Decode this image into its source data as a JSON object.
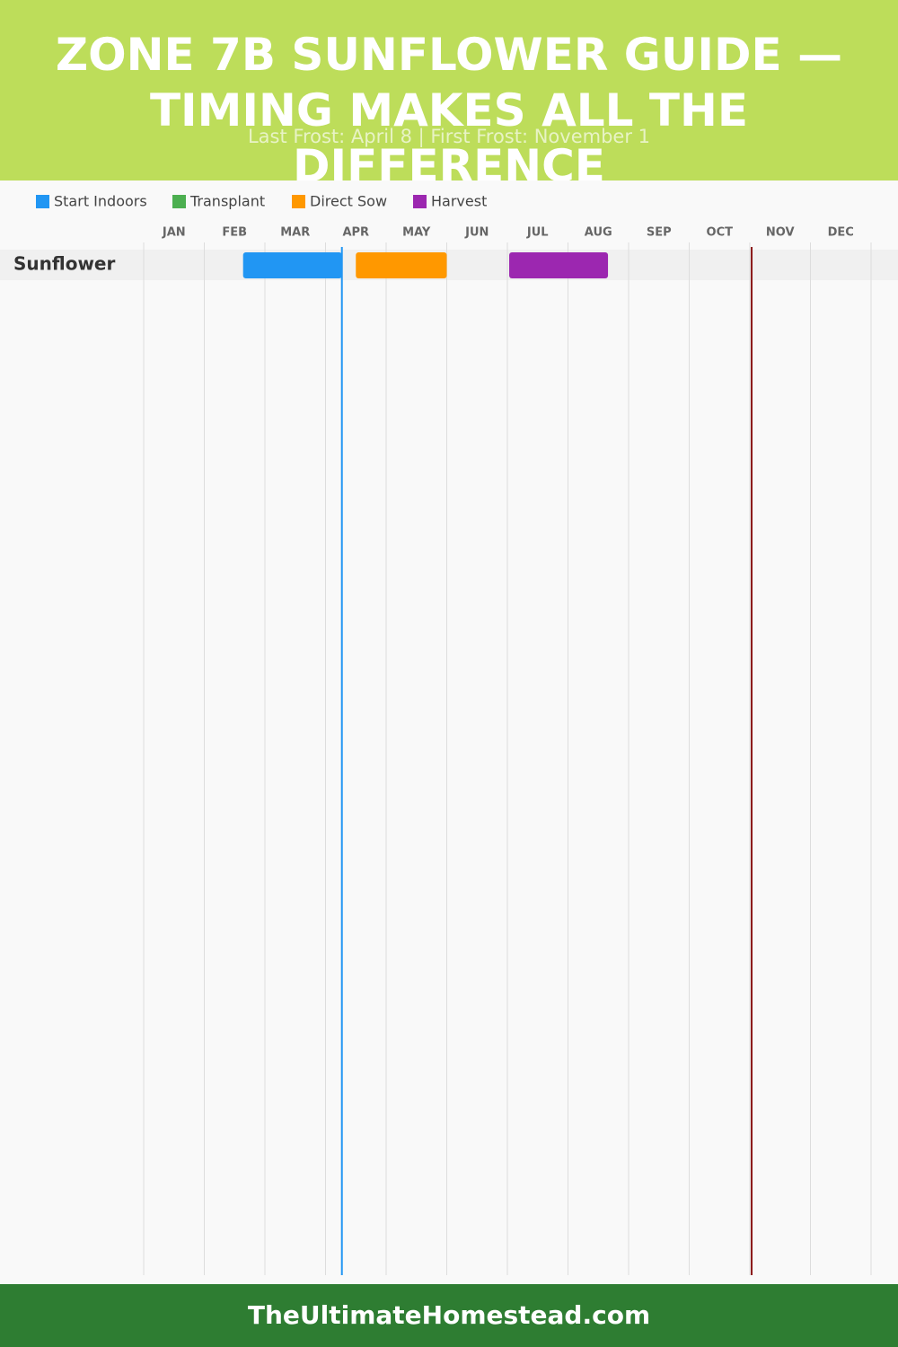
{
  "chart_data": {
    "type": "gantt",
    "title": "ZONE 7B SUNFLOWER GUIDE — TIMING MAKES ALL THE DIFFERENCE",
    "subtitle": "Last Frost: April 8 | First Frost: November 1",
    "series": [
      {
        "name": "Start Indoors",
        "color": "#2196f3"
      },
      {
        "name": "Transplant",
        "color": "#4caf50"
      },
      {
        "name": "Direct Sow",
        "color": "#ff9800"
      },
      {
        "name": "Harvest",
        "color": "#9c27b0"
      }
    ],
    "categories": [
      "JAN",
      "FEB",
      "MAR",
      "APR",
      "MAY",
      "JUN",
      "JUL",
      "AUG",
      "SEP",
      "OCT",
      "NOV",
      "DEC"
    ],
    "xlim": [
      0,
      12
    ],
    "rows": [
      {
        "name": "Sunflower",
        "segments": [
          {
            "series": 0,
            "start": 1.64,
            "end": 3.27
          },
          {
            "series": 2,
            "start": 3.5,
            "end": 5.0
          },
          {
            "series": 3,
            "start": 6.03,
            "end": 7.66
          }
        ]
      }
    ],
    "frost_lines": [
      {
        "value": 3.27,
        "color": "#2196f3"
      },
      {
        "value": 10.03,
        "color": "#8b1a1a"
      }
    ],
    "grid": true,
    "footer": "TheUltimateHomestead.com"
  }
}
